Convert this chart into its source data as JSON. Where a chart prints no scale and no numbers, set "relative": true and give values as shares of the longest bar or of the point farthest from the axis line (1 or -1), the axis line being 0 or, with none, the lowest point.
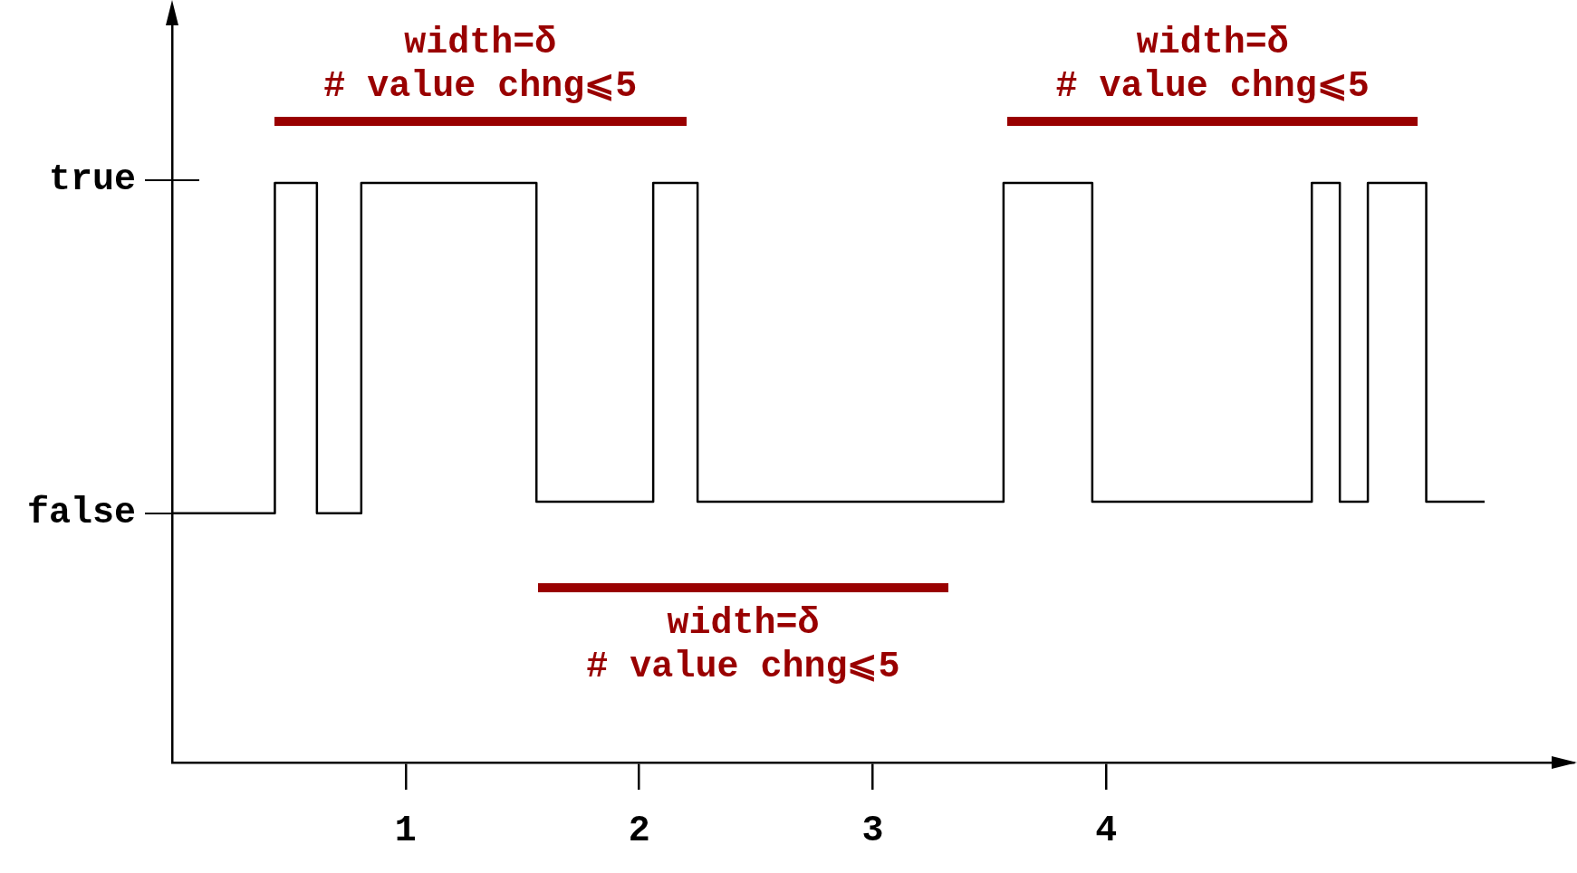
{
  "chart_data": {
    "type": "line",
    "relative": true,
    "x": [
      0,
      0.44,
      0.44,
      0.62,
      0.62,
      0.81,
      0.81,
      1.56,
      1.56,
      2.06,
      2.06,
      2.25,
      2.25,
      3.56,
      3.56,
      3.94,
      3.94,
      4.88,
      4.88,
      5.0,
      5.0,
      5.12,
      5.12,
      5.37,
      5.37,
      5.62
    ],
    "values": [
      0.43,
      0.43,
      1,
      1,
      0.43,
      0.43,
      1,
      1,
      0.45,
      0.45,
      1,
      1,
      0.45,
      0.45,
      1,
      1,
      0.45,
      0.45,
      1,
      1,
      0.45,
      0.45,
      1,
      1,
      0.45,
      0.45
    ],
    "color": "#000000",
    "xlim": [
      0,
      6
    ],
    "xticks": [
      1,
      2,
      3,
      4
    ],
    "grid": false,
    "legend": false,
    "marker": "none",
    "line_style": "solid",
    "annotations": [
      "true",
      "false",
      "width=δ\n# value chng⩽5",
      "width=δ\n# value chng⩽5",
      "width=δ\n# value chng⩽5"
    ]
  }
}
